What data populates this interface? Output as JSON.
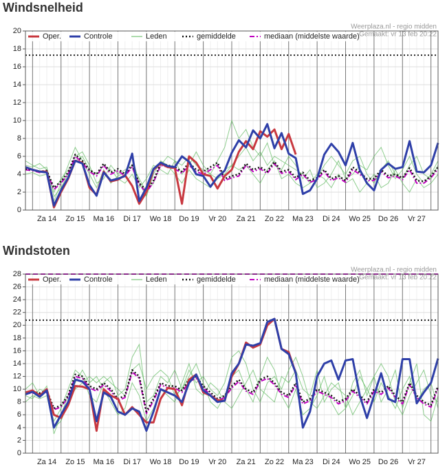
{
  "chart_data": [
    {
      "type": "line",
      "title": "Windsnelheid",
      "source": "Weerplaza.nl - regio midden",
      "created": "Gemaakt: vr 13 feb 20:22",
      "categories": [
        null,
        null,
        null,
        "Za 14",
        null,
        null,
        null,
        "Zo 15",
        null,
        null,
        null,
        "Ma 16",
        null,
        null,
        null,
        "Di 17",
        null,
        null,
        null,
        "Wo 18",
        null,
        null,
        null,
        "Do 19",
        null,
        null,
        null,
        "Vr 20",
        null,
        null,
        null,
        "Za 21",
        null,
        null,
        null,
        "Zo 22",
        null,
        null,
        null,
        "Ma 23",
        null,
        null,
        null,
        "Di 24",
        null,
        null,
        null,
        "Wo 25",
        null,
        null,
        null,
        "Do 26",
        null,
        null,
        null,
        "Vr 27",
        null,
        null,
        null
      ],
      "ylim": [
        0,
        20
      ],
      "yticks": [
        0,
        2,
        4,
        6,
        8,
        10,
        12,
        14,
        16,
        18,
        20
      ],
      "grid": true,
      "reference_lines": [
        {
          "value": 17.3,
          "color": "#222222",
          "dash": "dotted"
        }
      ],
      "series": [
        {
          "name": "Oper.",
          "color": "#c8383f",
          "dash": "solid",
          "width": 3,
          "values": [
            4.8,
            4.5,
            4.3,
            4.3,
            0.3,
            2.0,
            3.5,
            5.5,
            5.3,
            2.5,
            1.7,
            4.3,
            3.2,
            3.4,
            3.9,
            2.7,
            0.7,
            2.0,
            4.5,
            5.2,
            4.8,
            4.7,
            0.7,
            6.0,
            5.3,
            4.0,
            3.8,
            2.4,
            3.8,
            4.5,
            6.5,
            7.7,
            6.8,
            8.8,
            8.2,
            9.0,
            6.8,
            8.5,
            6.2,
            null,
            null,
            null,
            null,
            null,
            null,
            null,
            null,
            null,
            null,
            null,
            null,
            null,
            null,
            null,
            null,
            null,
            null,
            null,
            null
          ]
        },
        {
          "name": "Controle",
          "color": "#2e3fa8",
          "dash": "solid",
          "width": 3,
          "values": [
            4.8,
            4.5,
            4.3,
            4.2,
            0.5,
            2.2,
            3.6,
            5.5,
            5.2,
            2.8,
            1.6,
            4.2,
            3.3,
            3.5,
            3.8,
            6.3,
            1.0,
            2.5,
            4.6,
            5.3,
            4.9,
            4.8,
            6.0,
            5.4,
            4.0,
            3.8,
            2.6,
            3.7,
            4.4,
            6.4,
            7.8,
            7.0,
            8.9,
            8.0,
            9.6,
            6.9,
            8.6,
            6.3,
            5.8,
            1.8,
            2.2,
            3.5,
            6.2,
            7.4,
            6.5,
            5.0,
            7.5,
            4.5,
            3.0,
            2.2,
            4.5,
            5.2,
            4.6,
            4.8,
            7.7,
            4.3,
            4.2,
            5.0,
            7.5
          ]
        },
        {
          "name": "Leden",
          "color": "#5cb85c",
          "dash": "solid",
          "width": 1,
          "members": [
            [
              5.5,
              5,
              4.6,
              4.8,
              1.5,
              2.5,
              4,
              6,
              6.5,
              5,
              3,
              3.5,
              5,
              4,
              4.5,
              5,
              3.5,
              2,
              3,
              5,
              6,
              5.5,
              4,
              5,
              6.5,
              5,
              4,
              3.5,
              4.5,
              5,
              6,
              7,
              5.5,
              6.5,
              5,
              6,
              5.5,
              5,
              4.5,
              4,
              3,
              3.5,
              5,
              6,
              5,
              4,
              5.5,
              6,
              4,
              3,
              4.5,
              5.5,
              4,
              3.5,
              5,
              6,
              4,
              3.5,
              5
            ],
            [
              4,
              4.2,
              3.8,
              4,
              1,
              3,
              5,
              7,
              5.5,
              4,
              2.5,
              4.5,
              3,
              3.8,
              4.2,
              6,
              3,
              1.5,
              4,
              5.5,
              5,
              4,
              3,
              4.5,
              3.5,
              3,
              2.5,
              3.5,
              4,
              5,
              4.5,
              5,
              4,
              3,
              4.5,
              5.5,
              3.5,
              4,
              3,
              2.5,
              3,
              4,
              3.5,
              2.5,
              4,
              3,
              3.5,
              2,
              3,
              4,
              2.5,
              3,
              4.5,
              3,
              2,
              3.5,
              2.5,
              3,
              4
            ],
            [
              5,
              4.8,
              5.2,
              4.5,
              2,
              3.5,
              4.5,
              5.5,
              6,
              4.5,
              4,
              5,
              4.5,
              3.5,
              3,
              4,
              2.5,
              3.5,
              5,
              4.5,
              4,
              5.5,
              5,
              6,
              5,
              4.5,
              4,
              5.5,
              7,
              10,
              8,
              9,
              7,
              6,
              7.5,
              5,
              4.5,
              6,
              5,
              3.5,
              4.5,
              2.5,
              3,
              4,
              5.5,
              3.5,
              4,
              5,
              4.5,
              6,
              7,
              5,
              3.5,
              4.5,
              6,
              4,
              3,
              4,
              5.5
            ]
          ]
        },
        {
          "name": "gemiddelde",
          "color": "#111111",
          "dash": "dotted",
          "width": 2.5,
          "values": [
            4.6,
            4.5,
            4.3,
            4.4,
            2.5,
            3.2,
            4.2,
            6.2,
            5.5,
            4.5,
            4,
            5.2,
            4.2,
            4.6,
            4,
            5,
            3,
            2.2,
            3.3,
            5.2,
            5,
            4.8,
            4.3,
            5.3,
            4.5,
            4.3,
            4.8,
            5.3,
            3.5,
            3.8,
            4,
            5.2,
            4.5,
            4.8,
            4.3,
            5.4,
            4.3,
            4.5,
            3.6,
            4.2,
            3.3,
            3.6,
            4.5,
            3.5,
            3.8,
            3.3,
            4.8,
            4.2,
            3.5,
            3.5,
            4.5,
            3.8,
            4,
            3.6,
            4.7,
            3.3,
            3.2,
            3.8,
            4.8
          ]
        },
        {
          "name": "mediaan (middelste waarde)",
          "color": "#c000c0",
          "dash": "dashdot",
          "width": 2,
          "values": [
            4.5,
            4.4,
            4.2,
            4.3,
            2.3,
            3,
            4,
            6,
            5.3,
            4.3,
            3.8,
            5,
            4,
            4.4,
            3.8,
            4.8,
            2.8,
            2,
            3.1,
            5,
            4.8,
            4.6,
            4.1,
            5,
            4.3,
            4,
            4.5,
            5,
            3.3,
            3.6,
            3.8,
            5,
            4.3,
            4.6,
            4.1,
            5.2,
            4.1,
            4.3,
            3.4,
            4,
            3.1,
            3.4,
            4.3,
            3.3,
            3.6,
            3.1,
            4.5,
            4,
            3.3,
            3.3,
            4.3,
            3.6,
            3.8,
            3.4,
            4.5,
            3,
            3,
            3.6,
            4.6
          ]
        }
      ]
    },
    {
      "type": "line",
      "title": "Windstoten",
      "source": "Weerplaza.nl - regio midden",
      "created": "Gemaakt: vr 13 feb 20:22",
      "categories": [
        null,
        null,
        null,
        "Za 14",
        null,
        null,
        null,
        "Zo 15",
        null,
        null,
        null,
        "Ma 16",
        null,
        null,
        null,
        "Di 17",
        null,
        null,
        null,
        "Wo 18",
        null,
        null,
        null,
        "Do 19",
        null,
        null,
        null,
        "Vr 20",
        null,
        null,
        null,
        "Za 21",
        null,
        null,
        null,
        "Zo 22",
        null,
        null,
        null,
        "Ma 23",
        null,
        null,
        null,
        "Di 24",
        null,
        null,
        null,
        "Wo 25",
        null,
        null,
        null,
        "Do 26",
        null,
        null,
        null,
        "Vr 27",
        null,
        null,
        null
      ],
      "ylim": [
        0,
        28
      ],
      "yticks": [
        0,
        2,
        4,
        6,
        8,
        10,
        12,
        14,
        16,
        18,
        20,
        22,
        24,
        26,
        28
      ],
      "grid": true,
      "reference_lines": [
        {
          "value": 20.8,
          "color": "#222222",
          "dash": "dotted"
        },
        {
          "value": 28,
          "color": "#c000c0",
          "dash": "dashed"
        }
      ],
      "series": [
        {
          "name": "Oper.",
          "color": "#c8383f",
          "dash": "solid",
          "width": 3,
          "values": [
            9.5,
            9.8,
            9.0,
            10.0,
            6.0,
            5.5,
            7.5,
            10.5,
            10.4,
            10.0,
            3.5,
            10.0,
            9.0,
            8.5,
            6.0,
            7.2,
            6.0,
            4.8,
            4.8,
            8.5,
            10.2,
            10.0,
            7.5,
            11.5,
            12.3,
            9.5,
            9.0,
            8.3,
            8.2,
            12.0,
            14.0,
            17.3,
            16.5,
            17.0,
            20.0,
            21.0,
            16.3,
            15.8,
            12.5,
            null,
            null,
            null,
            null,
            null,
            null,
            null,
            null,
            null,
            null,
            null,
            null,
            null,
            null,
            null,
            null,
            null,
            null,
            null,
            null
          ]
        },
        {
          "name": "Controle",
          "color": "#2e3fa8",
          "dash": "solid",
          "width": 3,
          "values": [
            9.2,
            9.6,
            8.8,
            9.8,
            4.0,
            6.0,
            8.0,
            11.5,
            11.2,
            10.0,
            5.0,
            9.5,
            8.8,
            6.5,
            6.0,
            7.0,
            6.5,
            3.5,
            6.5,
            10.0,
            9.5,
            9.0,
            8.0,
            11.0,
            12.3,
            9.8,
            9.0,
            8.0,
            8.2,
            12.5,
            14.0,
            17.0,
            16.8,
            17.2,
            20.5,
            21.0,
            16.3,
            15.5,
            12.5,
            4.0,
            6.5,
            12.0,
            14.0,
            14.5,
            11.5,
            14.5,
            14.7,
            9.0,
            5.5,
            9.0,
            12.5,
            8.5,
            8.0,
            14.7,
            14.7,
            7.8,
            9.5,
            11.0,
            14.8
          ]
        },
        {
          "name": "Leden",
          "color": "#5cb85c",
          "dash": "solid",
          "width": 1,
          "members": [
            [
              9,
              8.5,
              10,
              9.5,
              5,
              7,
              10,
              13,
              12,
              9,
              8,
              11,
              12,
              9,
              10,
              15,
              17,
              8,
              9,
              12,
              11,
              13,
              10,
              12,
              14,
              11,
              8,
              7,
              9,
              12,
              13,
              10,
              8,
              12,
              15,
              13,
              9,
              7,
              10,
              6,
              7,
              9,
              12,
              8,
              6,
              7,
              11,
              13,
              9,
              12,
              8,
              10,
              13,
              7,
              11,
              14,
              6,
              5,
              9
            ],
            [
              10,
              11,
              9,
              10.5,
              3,
              6,
              9,
              11,
              13,
              11,
              12,
              10,
              8,
              6,
              7,
              11,
              9,
              5,
              7,
              10,
              9,
              8,
              11,
              14,
              10,
              9,
              11,
              10,
              8,
              7,
              9,
              11,
              13,
              10,
              9,
              8,
              12,
              11,
              13,
              10,
              9,
              13,
              8,
              10,
              11,
              7,
              9,
              12,
              10,
              8,
              11,
              9,
              7,
              10,
              12,
              8,
              10,
              11,
              7
            ],
            [
              8,
              9,
              8.5,
              9,
              4,
              5,
              8,
              10,
              11,
              12,
              11,
              12,
              11,
              10,
              9,
              13,
              14,
              10,
              12,
              13,
              12,
              9,
              10,
              13,
              11,
              12,
              10,
              9,
              11,
              15,
              16,
              14,
              10,
              8,
              11,
              12,
              10,
              13,
              15,
              12,
              8,
              7,
              9,
              11,
              10,
              9,
              6,
              8,
              10,
              12,
              14,
              12,
              8,
              6,
              9,
              11,
              13,
              9,
              8
            ]
          ]
        },
        {
          "name": "gemiddelde",
          "color": "#111111",
          "dash": "dotted",
          "width": 2.5,
          "values": [
            9.5,
            9.6,
            9.4,
            9.8,
            7,
            7.5,
            9,
            12.3,
            12,
            10.5,
            10,
            11,
            10,
            8.5,
            9,
            13,
            12,
            6.5,
            8.5,
            11,
            10.5,
            10.5,
            9.8,
            11.5,
            12,
            10.5,
            9.5,
            8.5,
            9,
            10.5,
            11.5,
            10,
            9.5,
            11.5,
            12,
            11,
            9.5,
            9,
            11,
            8,
            8.5,
            10,
            9.5,
            9,
            8,
            8.5,
            10,
            9,
            8,
            10,
            9.5,
            10.5,
            9,
            8,
            11,
            9,
            8,
            7.5,
            10.5
          ]
        },
        {
          "name": "mediaan (middelste waarde)",
          "color": "#c000c0",
          "dash": "dashdot",
          "width": 2,
          "values": [
            9.3,
            9.4,
            9.2,
            9.5,
            6.8,
            7.2,
            8.8,
            12,
            11.7,
            10.2,
            9.7,
            10.7,
            9.7,
            8.2,
            8.7,
            12.7,
            11.7,
            6.2,
            8.2,
            10.7,
            10.2,
            10.2,
            9.5,
            11.2,
            11.7,
            10.2,
            9.2,
            8.2,
            8.7,
            10.2,
            11.2,
            9.7,
            9.2,
            11.2,
            11.7,
            10.7,
            9.2,
            8.7,
            10.7,
            7.7,
            8.2,
            9.7,
            9.2,
            8.7,
            7.7,
            8.2,
            9.7,
            8.7,
            7.7,
            9.7,
            9.2,
            10.2,
            8.7,
            7.7,
            10.7,
            8.7,
            7.7,
            7.2,
            10.2
          ]
        }
      ]
    }
  ]
}
